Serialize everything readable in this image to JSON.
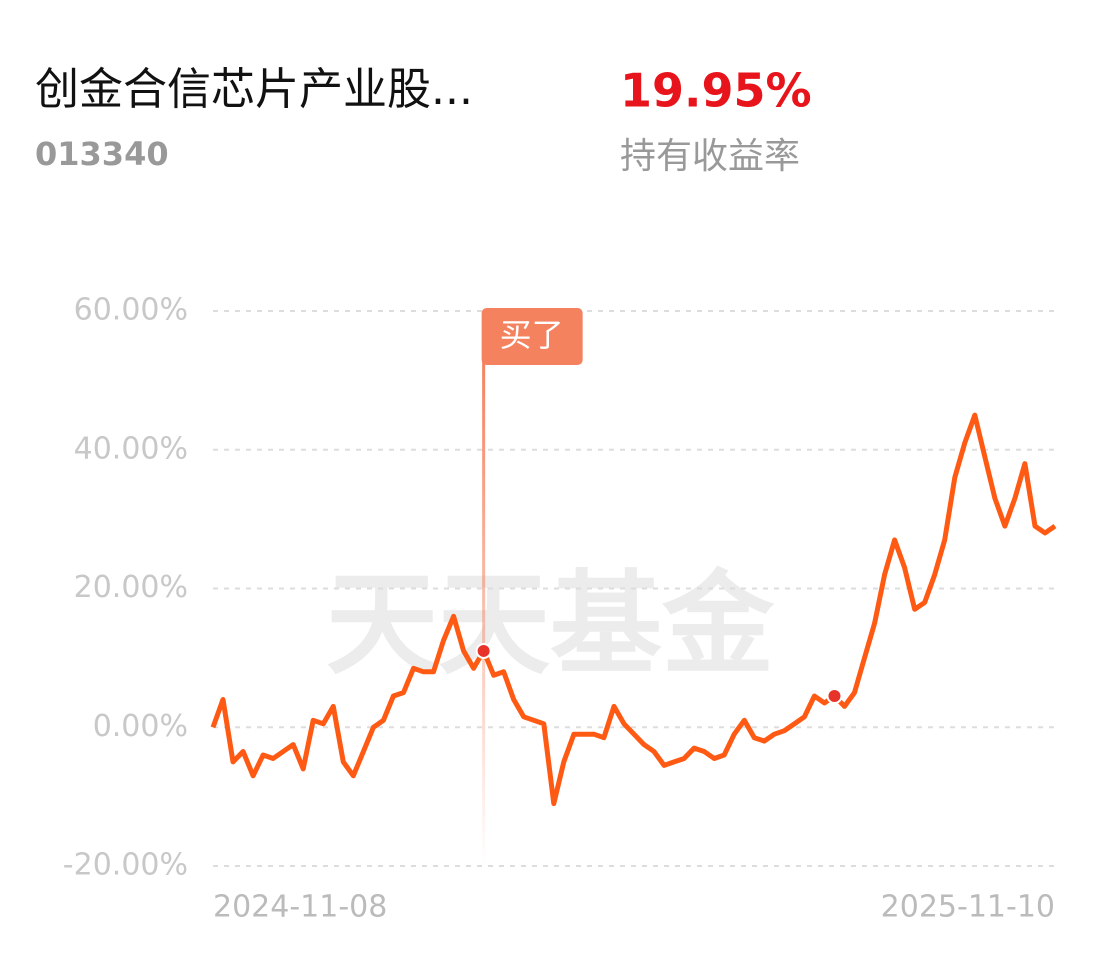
{
  "header": {
    "fund_name": "创金合信芯片产业股...",
    "fund_code": "013340",
    "return_value": "19.95%",
    "return_label": "持有收益率"
  },
  "chart_data": {
    "type": "line",
    "watermark": "天天基金",
    "categories": [
      "2024-11-08",
      null,
      null,
      null,
      null,
      null,
      null,
      null,
      null,
      null,
      null,
      null,
      null,
      null,
      null,
      null,
      null,
      null,
      null,
      null,
      null,
      null,
      null,
      null,
      null,
      null,
      null,
      null,
      null,
      null,
      null,
      null,
      null,
      null,
      null,
      null,
      null,
      null,
      null,
      null,
      null,
      null,
      null,
      null,
      null,
      null,
      null,
      null,
      null,
      null,
      null,
      null,
      null,
      null,
      null,
      null,
      null,
      null,
      null,
      null,
      null,
      null,
      null,
      null,
      null,
      null,
      null,
      null,
      null,
      null,
      null,
      null,
      null,
      null,
      null,
      null,
      null,
      null,
      null,
      null,
      null,
      null,
      null,
      null,
      "2025-11-10"
    ],
    "values": [
      0,
      4,
      -5,
      -3.5,
      -7,
      -4,
      -4.5,
      -3.5,
      -2.5,
      -6,
      1,
      0.5,
      3,
      -5,
      -7,
      -3.5,
      0,
      1,
      4.5,
      5,
      8.5,
      8,
      8,
      12.5,
      16,
      11,
      8.5,
      11,
      7.5,
      8,
      4,
      1.5,
      1,
      0.5,
      -11,
      -5,
      -1,
      -1,
      -1,
      -1.5,
      3,
      0.5,
      -1,
      -2.5,
      -3.5,
      -5.5,
      -5,
      -4.5,
      -3,
      -3.5,
      -4.5,
      -4,
      -1,
      1,
      -1.5,
      -2,
      -1,
      -0.5,
      0.5,
      1.5,
      4.5,
      3.5,
      4.5,
      3,
      5,
      10,
      15,
      22,
      27,
      23,
      17,
      18,
      22,
      27,
      36,
      41,
      45,
      39,
      33,
      29,
      33,
      38,
      29,
      28,
      29
    ],
    "color": "#ff5a14",
    "markers": [
      {
        "x_index": 27,
        "label": "买了"
      },
      {
        "x_index": 62
      }
    ],
    "ylim": [
      -20,
      60
    ],
    "yticks": [
      {
        "value": -20,
        "label": "-20.00%"
      },
      {
        "value": 0,
        "label": "0.00%"
      },
      {
        "value": 20,
        "label": "20.00%"
      },
      {
        "value": 40,
        "label": "40.00%"
      },
      {
        "value": 60,
        "label": "60.00%"
      }
    ],
    "grid": true
  }
}
